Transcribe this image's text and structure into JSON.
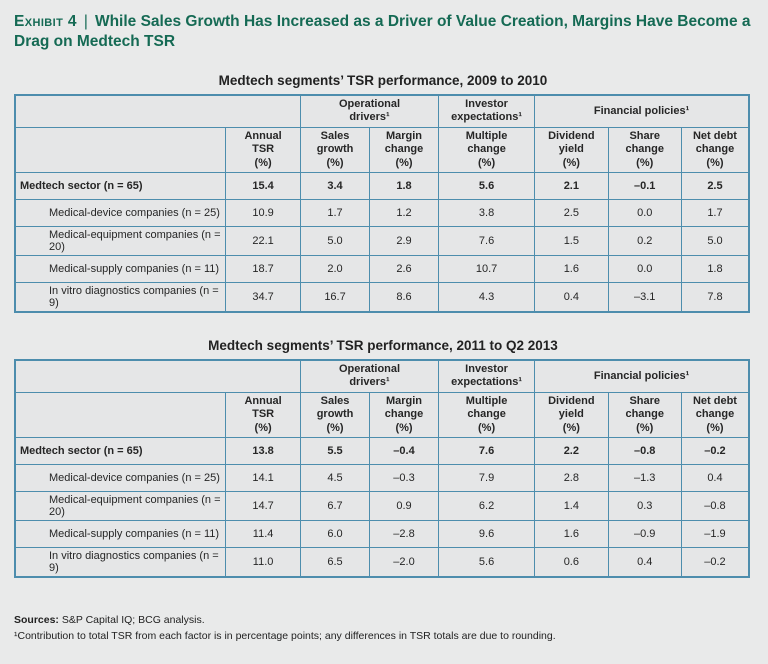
{
  "page": {
    "background": "#e9eaea",
    "table_border_color": "#4d8dad",
    "title_green": "#156a54"
  },
  "header": {
    "exhibit_label": "Exhibit 4",
    "separator": "|",
    "title": "While Sales Growth Has Increased as a Driver of Value Creation, Margins Have Become a Drag on Medtech TSR"
  },
  "tables": [
    {
      "title": "Medtech segments’ TSR performance, 2009 to 2010",
      "group_headers": [
        {
          "label": "",
          "span": 2
        },
        {
          "label": "Operational\ndrivers¹",
          "span": 2
        },
        {
          "label": "Investor\nexpectations¹",
          "span": 1
        },
        {
          "label": "Financial policies¹",
          "span": 3
        }
      ],
      "column_headers": [
        "",
        "Annual\nTSR\n(%)",
        "Sales\ngrowth\n(%)",
        "Margin\nchange\n(%)",
        "Multiple\nchange\n(%)",
        "Dividend\nyield\n(%)",
        "Share\nchange\n(%)",
        "Net debt\nchange\n(%)"
      ],
      "rows": [
        {
          "label": "Medtech sector (n = 65)",
          "bold": true,
          "indent": false,
          "values": [
            "15.4",
            "3.4",
            "1.8",
            "5.6",
            "2.1",
            "–0.1",
            "2.5"
          ]
        },
        {
          "label": "Medical-device companies (n = 25)",
          "bold": false,
          "indent": true,
          "values": [
            "10.9",
            "1.7",
            "1.2",
            "3.8",
            "2.5",
            "0.0",
            "1.7"
          ]
        },
        {
          "label": "Medical-equipment companies (n = 20)",
          "bold": false,
          "indent": true,
          "values": [
            "22.1",
            "5.0",
            "2.9",
            "7.6",
            "1.5",
            "0.2",
            "5.0"
          ]
        },
        {
          "label": "Medical-supply companies (n = 11)",
          "bold": false,
          "indent": true,
          "values": [
            "18.7",
            "2.0",
            "2.6",
            "10.7",
            "1.6",
            "0.0",
            "1.8"
          ]
        },
        {
          "label": "In vitro diagnostics companies (n = 9)",
          "bold": false,
          "indent": true,
          "values": [
            "34.7",
            "16.7",
            "8.6",
            "4.3",
            "0.4",
            "–3.1",
            "7.8"
          ]
        }
      ]
    },
    {
      "title": "Medtech segments’ TSR performance, 2011 to Q2 2013",
      "group_headers": [
        {
          "label": "",
          "span": 2
        },
        {
          "label": "Operational\ndrivers¹",
          "span": 2
        },
        {
          "label": "Investor\nexpectations¹",
          "span": 1
        },
        {
          "label": "Financial policies¹",
          "span": 3
        }
      ],
      "column_headers": [
        "",
        "Annual\nTSR\n(%)",
        "Sales\ngrowth\n(%)",
        "Margin\nchange\n(%)",
        "Multiple\nchange\n(%)",
        "Dividend\nyield\n(%)",
        "Share\nchange\n(%)",
        "Net debt\nchange\n(%)"
      ],
      "rows": [
        {
          "label": "Medtech sector (n = 65)",
          "bold": true,
          "indent": false,
          "values": [
            "13.8",
            "5.5",
            "–0.4",
            "7.6",
            "2.2",
            "–0.8",
            "–0.2"
          ]
        },
        {
          "label": "Medical-device companies (n = 25)",
          "bold": false,
          "indent": true,
          "values": [
            "14.1",
            "4.5",
            "–0.3",
            "7.9",
            "2.8",
            "–1.3",
            "0.4"
          ]
        },
        {
          "label": "Medical-equipment companies (n = 20)",
          "bold": false,
          "indent": true,
          "values": [
            "14.7",
            "6.7",
            "0.9",
            "6.2",
            "1.4",
            "0.3",
            "–0.8"
          ]
        },
        {
          "label": "Medical-supply companies (n = 11)",
          "bold": false,
          "indent": true,
          "values": [
            "11.4",
            "6.0",
            "–2.8",
            "9.6",
            "1.6",
            "–0.9",
            "–1.9"
          ]
        },
        {
          "label": "In vitro diagnostics companies (n = 9)",
          "bold": false,
          "indent": true,
          "values": [
            "11.0",
            "6.5",
            "–2.0",
            "5.6",
            "0.6",
            "0.4",
            "–0.2"
          ]
        }
      ]
    }
  ],
  "footer": {
    "sources_label": "Sources:",
    "sources_text": " S&P Capital IQ; BCG analysis.",
    "footnote": "¹Contribution to total TSR from each factor is in percentage points; any differences in TSR totals are due to rounding."
  }
}
